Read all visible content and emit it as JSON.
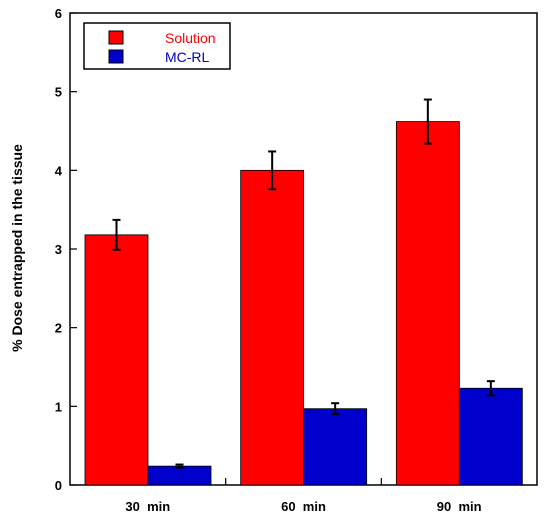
{
  "chart_data": {
    "type": "bar",
    "title": "",
    "xlabel": "",
    "ylabel": "% Dose entrapped in the tissue",
    "ylim": [
      0,
      6
    ],
    "yticks": [
      "0",
      "1",
      "2",
      "3",
      "4",
      "5",
      "6"
    ],
    "categories": [
      "30  min",
      "60  min",
      "90  min"
    ],
    "series": [
      {
        "name": "Solution",
        "color": "#ff0000",
        "values": [
          3.18,
          4.0,
          4.62
        ],
        "errors": [
          0.19,
          0.24,
          0.28
        ]
      },
      {
        "name": "MC-RL",
        "color": "#0000cc",
        "values": [
          0.24,
          0.97,
          1.23
        ],
        "errors": [
          0.02,
          0.07,
          0.09
        ]
      }
    ],
    "legend_position": "top-left",
    "grid": false
  }
}
